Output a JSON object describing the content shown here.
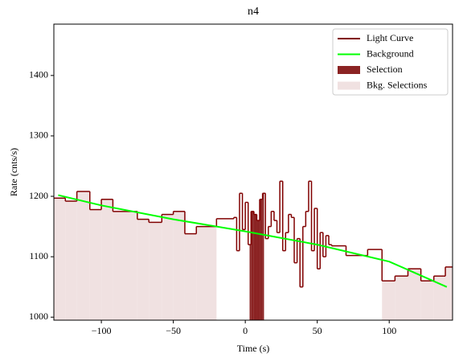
{
  "chart_data": {
    "type": "step",
    "title": "n4",
    "xlabel": "Time (s)",
    "ylabel": "Rate (cnts/s)",
    "xlim": [
      -133,
      144
    ],
    "ylim": [
      995,
      1485
    ],
    "xticks": [
      {
        "value": -100,
        "label": "−100"
      },
      {
        "value": -50,
        "label": "−50"
      },
      0,
      50,
      100
    ],
    "yticks": [
      1000,
      1100,
      1200,
      1300,
      1400
    ],
    "legend": "upper right",
    "series": [
      {
        "name": "Light Curve",
        "color": "#800000",
        "bins": [
          -133,
          -125,
          -117,
          -108,
          -100,
          -92,
          -75,
          -67,
          -58,
          -50,
          -42,
          -34,
          -20,
          -8,
          -6,
          -4,
          -2,
          0,
          2,
          4,
          6,
          8,
          10,
          12,
          14,
          16,
          18,
          20,
          22,
          24,
          26,
          28,
          30,
          32,
          34,
          36,
          38,
          40,
          42,
          44,
          46,
          48,
          50,
          52,
          54,
          56,
          58,
          60,
          70,
          85,
          95,
          104,
          113,
          122,
          131,
          139,
          144
        ],
        "values": [
          1197,
          1192,
          1208,
          1178,
          1195,
          1175,
          1162,
          1157,
          1170,
          1175,
          1138,
          1150,
          1163,
          1165,
          1110,
          1205,
          1145,
          1190,
          1120,
          1175,
          1170,
          1160,
          1195,
          1205,
          1130,
          1150,
          1175,
          1160,
          1140,
          1225,
          1110,
          1140,
          1170,
          1165,
          1090,
          1130,
          1050,
          1150,
          1175,
          1225,
          1110,
          1180,
          1080,
          1140,
          1100,
          1135,
          1120,
          1118,
          1102,
          1112,
          1060,
          1068,
          1080,
          1060,
          1068,
          1083
        ]
      },
      {
        "name": "Background",
        "color": "#00ff00",
        "x": [
          -130,
          -100,
          -50,
          0,
          50,
          100,
          140
        ],
        "values": [
          1202,
          1185,
          1162,
          1142,
          1120,
          1092,
          1050
        ]
      }
    ],
    "selection": {
      "name": "Selection",
      "color": "#8b2323",
      "range": [
        3,
        13
      ]
    },
    "bkg_selections": {
      "name": "Bkg. Selections",
      "color": "#f0e1e1",
      "ranges": [
        [
          -133,
          -20
        ],
        [
          95,
          144
        ]
      ]
    }
  }
}
